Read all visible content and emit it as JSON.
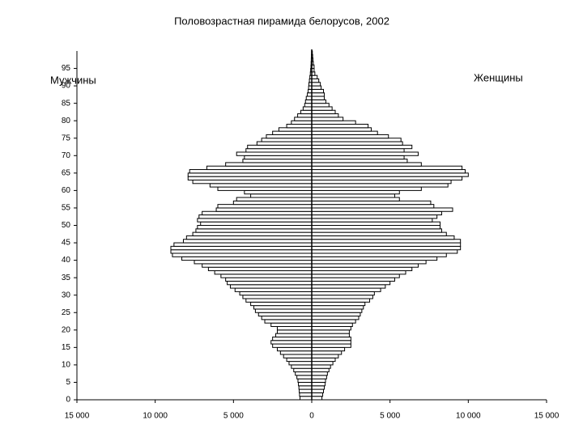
{
  "chart_data": {
    "type": "bar",
    "orientation": "horizontal",
    "title": "Половозрастная пирамида белорусов, 2002",
    "x": [
      0,
      1,
      2,
      3,
      4,
      5,
      6,
      7,
      8,
      9,
      10,
      11,
      12,
      13,
      14,
      15,
      16,
      17,
      18,
      19,
      20,
      21,
      22,
      23,
      24,
      25,
      26,
      27,
      28,
      29,
      30,
      31,
      32,
      33,
      34,
      35,
      36,
      37,
      38,
      39,
      40,
      41,
      42,
      43,
      44,
      45,
      46,
      47,
      48,
      49,
      50,
      51,
      52,
      53,
      54,
      55,
      56,
      57,
      58,
      59,
      60,
      61,
      62,
      63,
      64,
      65,
      66,
      67,
      68,
      69,
      70,
      71,
      72,
      73,
      74,
      75,
      76,
      77,
      78,
      79,
      80,
      81,
      82,
      83,
      84,
      85,
      86,
      87,
      88,
      89,
      90,
      91,
      92,
      93,
      94,
      95,
      96,
      97,
      98,
      99
    ],
    "series": [
      {
        "name": "Мужчины",
        "color": "#ffffff",
        "values": [
          -750,
          -780,
          -800,
          -820,
          -850,
          -880,
          -950,
          -1050,
          -1150,
          -1300,
          -1450,
          -1600,
          -1800,
          -2000,
          -2200,
          -2500,
          -2600,
          -2500,
          -2300,
          -2200,
          -2200,
          -2600,
          -3000,
          -3200,
          -3400,
          -3600,
          -3700,
          -3900,
          -4200,
          -4400,
          -4600,
          -4900,
          -5200,
          -5400,
          -5500,
          -5800,
          -6200,
          -6600,
          -7000,
          -7500,
          -8300,
          -8900,
          -9000,
          -9000,
          -8800,
          -8200,
          -8000,
          -7600,
          -7400,
          -7300,
          -7100,
          -7300,
          -7200,
          -7000,
          -6100,
          -6000,
          -5000,
          -4800,
          -3900,
          -4300,
          -6000,
          -6500,
          -7600,
          -7900,
          -7900,
          -7800,
          -6700,
          -5500,
          -4400,
          -4300,
          -4800,
          -4200,
          -4100,
          -3500,
          -3200,
          -2900,
          -2500,
          -2100,
          -1600,
          -1300,
          -1100,
          -900,
          -700,
          -550,
          -450,
          -400,
          -350,
          -280,
          -230,
          -200,
          -180,
          -150,
          -120,
          -90,
          -70,
          -50,
          -40,
          -30,
          -20,
          -10
        ]
      },
      {
        "name": "Женщины",
        "color": "#ffffff",
        "values": [
          650,
          700,
          750,
          800,
          850,
          880,
          950,
          1000,
          1100,
          1200,
          1350,
          1500,
          1700,
          1900,
          2100,
          2500,
          2500,
          2500,
          2400,
          2400,
          2500,
          2600,
          2800,
          3000,
          3100,
          3200,
          3300,
          3400,
          3700,
          3900,
          4000,
          4400,
          4700,
          5000,
          5300,
          5600,
          6000,
          6400,
          6800,
          7300,
          8000,
          8600,
          9300,
          9500,
          9500,
          9500,
          9100,
          8600,
          8300,
          8200,
          8200,
          7700,
          8000,
          8300,
          9000,
          7800,
          7600,
          5600,
          5300,
          5600,
          7000,
          8700,
          8900,
          9600,
          10000,
          9800,
          9600,
          7000,
          6100,
          5900,
          6800,
          5900,
          6400,
          5800,
          5700,
          4900,
          4200,
          3800,
          3600,
          2800,
          2000,
          1700,
          1500,
          1300,
          1100,
          900,
          800,
          800,
          750,
          600,
          550,
          450,
          350,
          200,
          150,
          150,
          100,
          80,
          60,
          40
        ]
      }
    ],
    "xlim": [
      -15000,
      15000
    ],
    "xticks": [
      {
        "value": -15000,
        "label": "15 000"
      },
      {
        "value": -10000,
        "label": "10 000"
      },
      {
        "value": -5000,
        "label": "5 000"
      },
      0,
      {
        "value": 5000,
        "label": "5 000"
      },
      {
        "value": 10000,
        "label": "10 000"
      },
      {
        "value": 15000,
        "label": "15 000"
      }
    ],
    "ylim": [
      0,
      100
    ],
    "yticks": [
      0,
      5,
      10,
      15,
      20,
      25,
      30,
      35,
      40,
      45,
      50,
      55,
      60,
      65,
      70,
      75,
      80,
      85,
      90,
      95
    ],
    "bar_stroke": "#000000"
  }
}
